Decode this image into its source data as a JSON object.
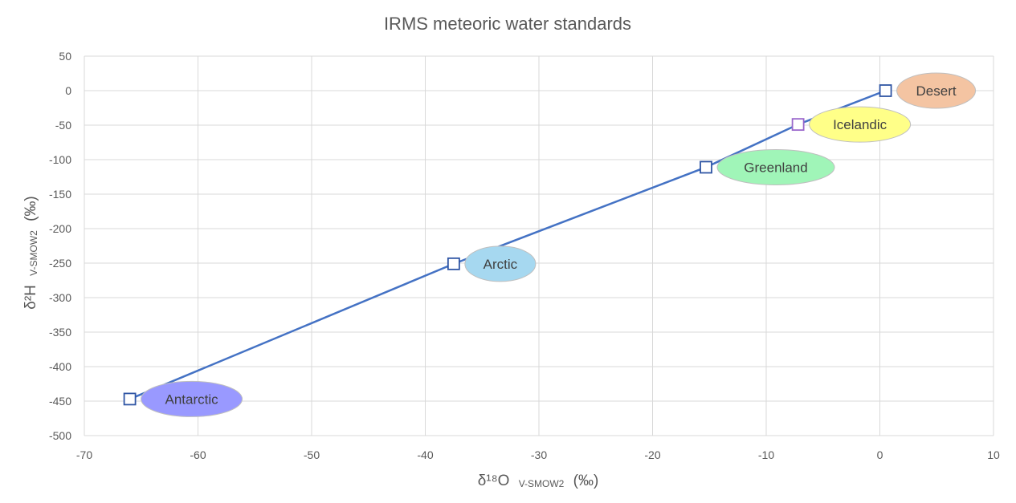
{
  "chart_data": {
    "type": "scatter",
    "title": "IRMS meteoric water standards",
    "xlabel": {
      "main": "δ¹⁸O",
      "sub": "V-SMOW2",
      "unit": "(‰)"
    },
    "ylabel": {
      "main": "δ²H",
      "sub": "V-SMOW2",
      "unit": "(‰)"
    },
    "xlim": [
      -70,
      10
    ],
    "ylim": [
      -500,
      50
    ],
    "x_ticks": [
      -70,
      -60,
      -50,
      -40,
      -30,
      -20,
      -10,
      0,
      10
    ],
    "y_ticks": [
      50,
      0,
      -50,
      -100,
      -150,
      -200,
      -250,
      -300,
      -350,
      -400,
      -450,
      -500
    ],
    "grid": true,
    "legend": "none",
    "series": [
      {
        "line": true,
        "points": [
          {
            "label": "Antarctic",
            "x": -66,
            "y": -447
          },
          {
            "label": "Arctic",
            "x": -37.5,
            "y": -251
          },
          {
            "label": "Greenland",
            "x": -15.3,
            "y": -111
          },
          {
            "label": "Icelandic",
            "x": -7.2,
            "y": -49
          },
          {
            "label": "Desert",
            "x": 0.5,
            "y": 0
          }
        ]
      }
    ]
  },
  "colors": {
    "line": "#4472C4",
    "marker_stroke": "#2F55A4",
    "marker_stroke_icelandic": "#9966CC",
    "grid": "#D9D9D9",
    "text": "#595959",
    "label_fills": {
      "Antarctic": "#9999FF",
      "Arctic": "#A6D8F0",
      "Greenland": "#A0F5B8",
      "Icelandic": "#FFFF88",
      "Desert": "#F4C4A2"
    }
  }
}
